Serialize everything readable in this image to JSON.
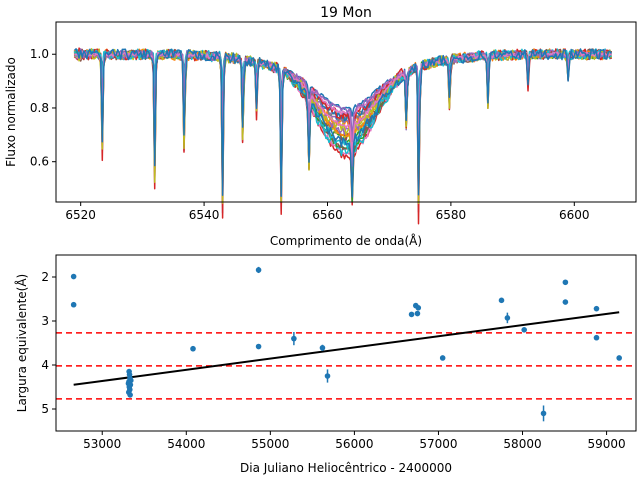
{
  "chart_data": [
    {
      "type": "line",
      "title": "19 Mon",
      "xlabel": "Comprimento de onda(Å)",
      "ylabel": "Fluxo normalizado",
      "xlim": [
        6516,
        6610
      ],
      "ylim": [
        0.45,
        1.12
      ],
      "xticks": [
        6520,
        6540,
        6560,
        6580,
        6600
      ],
      "yticks": [
        0.6,
        0.8,
        1.0
      ],
      "xtick_labels": [
        "6520",
        "6540",
        "6560",
        "6580",
        "6600"
      ],
      "ytick_labels": [
        "0.6",
        "0.8",
        "1.0"
      ],
      "grid": false,
      "x_range": [
        6519,
        6606
      ],
      "profile": {
        "core_center": 6563,
        "continuum": 1.0,
        "core_depth_min": 0.12,
        "core_depth_max": 0.3,
        "core_width": 4.5,
        "broad_width": 10
      },
      "absorption_lines": [
        {
          "x": 6523.5,
          "depth_max": 0.38
        },
        {
          "x": 6532.0,
          "depth_max": 0.5
        },
        {
          "x": 6536.8,
          "depth_max": 0.4
        },
        {
          "x": 6543.0,
          "depth_max": 0.6
        },
        {
          "x": 6546.3,
          "depth_max": 0.35
        },
        {
          "x": 6548.5,
          "depth_max": 0.2
        },
        {
          "x": 6552.5,
          "depth_max": 0.55
        },
        {
          "x": 6557.0,
          "depth_max": 0.3
        },
        {
          "x": 6564.0,
          "depth_max": 0.25
        },
        {
          "x": 6572.8,
          "depth_max": 0.25
        },
        {
          "x": 6574.8,
          "depth_max": 0.62
        },
        {
          "x": 6579.8,
          "depth_max": 0.2
        },
        {
          "x": 6586.0,
          "depth_max": 0.2
        },
        {
          "x": 6592.5,
          "depth_max": 0.12
        },
        {
          "x": 6599.0,
          "depth_max": 0.1
        }
      ],
      "series_colors": [
        "#1f77b4",
        "#ff7f0e",
        "#2ca02c",
        "#d62728",
        "#9467bd",
        "#8c564b",
        "#e377c2",
        "#7f7f7f",
        "#bcbd22",
        "#17becf",
        "#1f77b4",
        "#ff7f0e",
        "#2ca02c",
        "#d62728",
        "#9467bd",
        "#8c564b",
        "#e377c2",
        "#bcbd22",
        "#17becf",
        "#9467bd",
        "#e377c2",
        "#1f77b4"
      ]
    },
    {
      "type": "scatter",
      "xlabel": "Dia Juliano Heliocêntrico - 2400000",
      "ylabel": "Largura equivalente(Å)",
      "xlim": [
        52450,
        59350
      ],
      "ylim": [
        5.5,
        1.5
      ],
      "y_inverted": true,
      "xticks": [
        53000,
        54000,
        55000,
        56000,
        57000,
        58000,
        59000
      ],
      "yticks": [
        2,
        3,
        4,
        5
      ],
      "xtick_labels": [
        "53000",
        "54000",
        "55000",
        "56000",
        "57000",
        "58000",
        "59000"
      ],
      "ytick_labels": [
        "2",
        "3",
        "4",
        "5"
      ],
      "grid": false,
      "marker_color": "#1f77b4",
      "points": [
        {
          "x": 52660,
          "y": 1.99,
          "err": 0.03
        },
        {
          "x": 52660,
          "y": 2.63,
          "err": 0.03
        },
        {
          "x": 53320,
          "y": 4.15,
          "err": 0.05
        },
        {
          "x": 53325,
          "y": 4.22,
          "err": 0.05
        },
        {
          "x": 53330,
          "y": 4.3,
          "err": 0.05
        },
        {
          "x": 53318,
          "y": 4.38,
          "err": 0.05
        },
        {
          "x": 53335,
          "y": 4.45,
          "err": 0.05
        },
        {
          "x": 53322,
          "y": 4.5,
          "err": 0.05
        },
        {
          "x": 53328,
          "y": 4.56,
          "err": 0.05
        },
        {
          "x": 53316,
          "y": 4.62,
          "err": 0.05
        },
        {
          "x": 53332,
          "y": 4.68,
          "err": 0.05
        },
        {
          "x": 53340,
          "y": 4.35,
          "err": 0.05
        },
        {
          "x": 53312,
          "y": 4.42,
          "err": 0.05
        },
        {
          "x": 54080,
          "y": 3.63,
          "err": 0.06
        },
        {
          "x": 54860,
          "y": 1.84,
          "err": 0.07
        },
        {
          "x": 54860,
          "y": 3.58,
          "err": 0.05
        },
        {
          "x": 55280,
          "y": 3.4,
          "err": 0.15
        },
        {
          "x": 55620,
          "y": 3.61,
          "err": 0.07
        },
        {
          "x": 55680,
          "y": 4.25,
          "err": 0.15
        },
        {
          "x": 56680,
          "y": 2.85,
          "err": 0.04
        },
        {
          "x": 56730,
          "y": 2.65,
          "err": 0.04
        },
        {
          "x": 56750,
          "y": 2.83,
          "err": 0.04
        },
        {
          "x": 56760,
          "y": 2.7,
          "err": 0.04
        },
        {
          "x": 57050,
          "y": 3.84,
          "err": 0.04
        },
        {
          "x": 57750,
          "y": 2.53,
          "err": 0.04
        },
        {
          "x": 57820,
          "y": 2.93,
          "err": 0.12
        },
        {
          "x": 58020,
          "y": 3.2,
          "err": 0.04
        },
        {
          "x": 58250,
          "y": 5.1,
          "err": 0.18
        },
        {
          "x": 58510,
          "y": 2.12,
          "err": 0.04
        },
        {
          "x": 58510,
          "y": 2.57,
          "err": 0.04
        },
        {
          "x": 58880,
          "y": 2.72,
          "err": 0.04
        },
        {
          "x": 58880,
          "y": 3.38,
          "err": 0.04
        },
        {
          "x": 59150,
          "y": 3.84,
          "err": 0.04
        }
      ],
      "trend_line": {
        "x": [
          52660,
          59150
        ],
        "y": [
          4.45,
          2.8
        ],
        "color": "#000000"
      },
      "hlines": [
        {
          "y": 3.27,
          "color": "#ff0000",
          "style": "dashed"
        },
        {
          "y": 4.02,
          "color": "#ff0000",
          "style": "dashed"
        },
        {
          "y": 4.77,
          "color": "#ff0000",
          "style": "dashed"
        }
      ]
    }
  ]
}
